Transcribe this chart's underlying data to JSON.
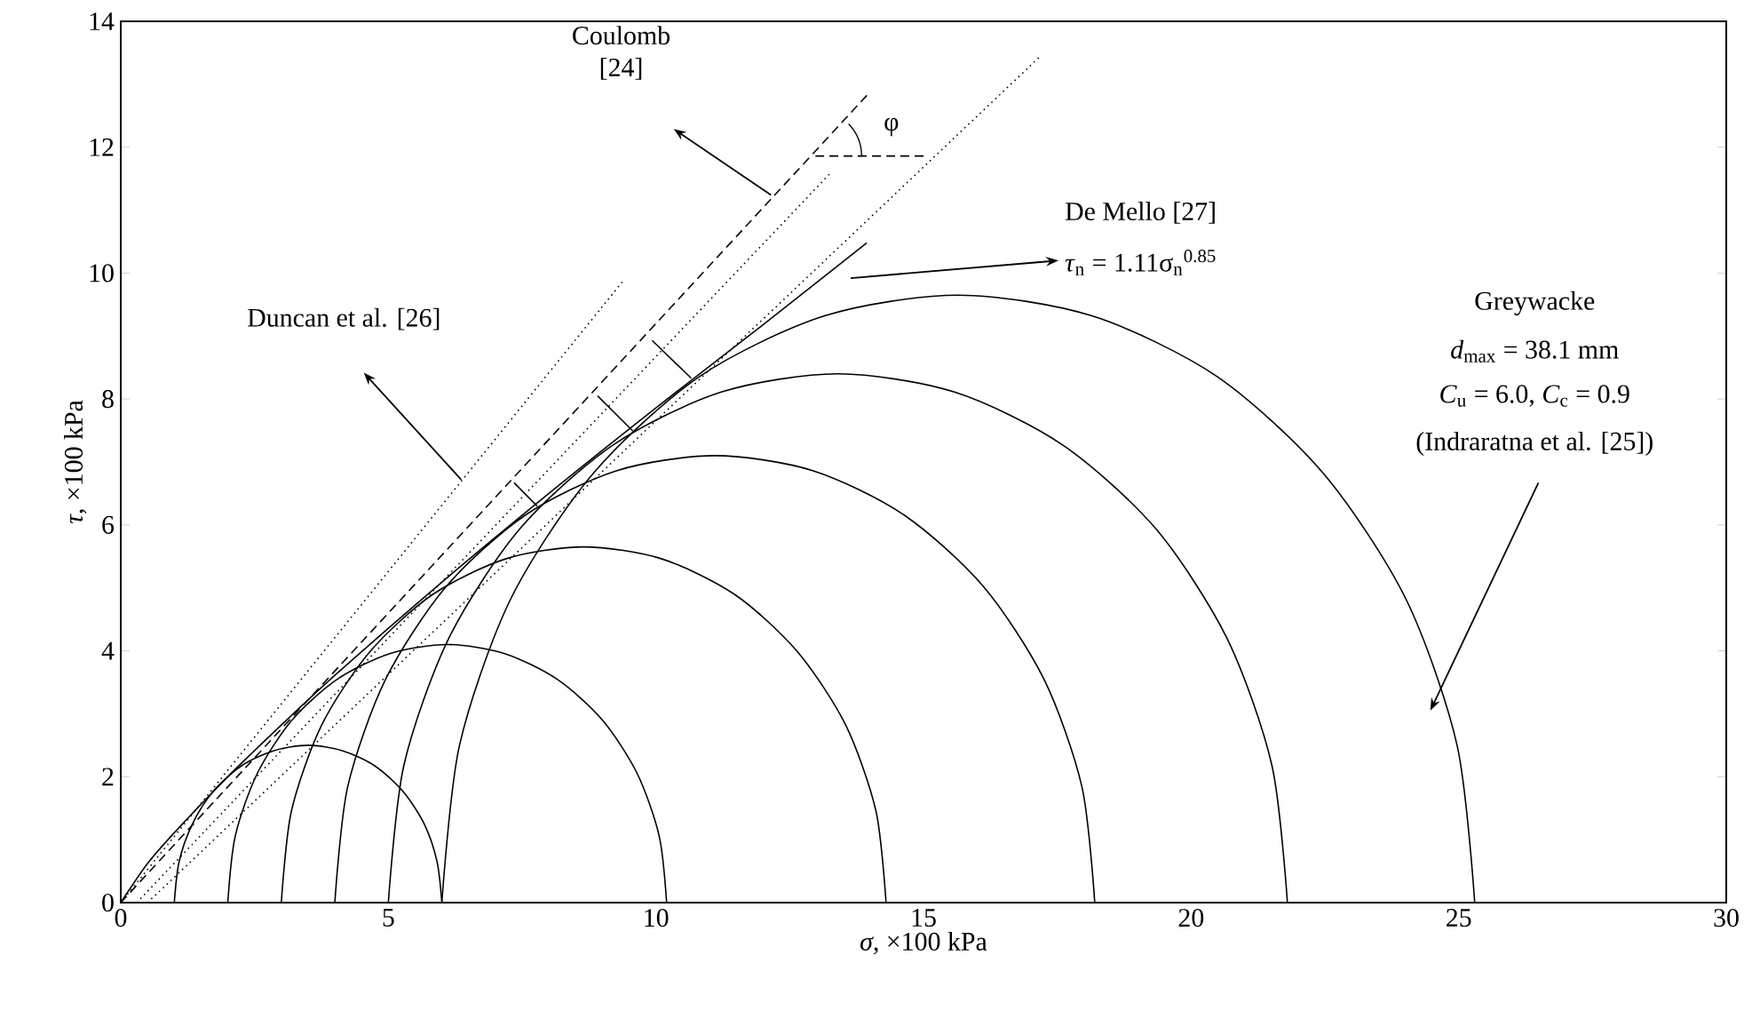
{
  "chart_data": {
    "type": "line",
    "xlabel": "*σ*, ×100 kPa",
    "ylabel": "*τ*, ×100 kPa",
    "xlim": [
      0,
      30
    ],
    "ylim": [
      0,
      14
    ],
    "xticks": [
      0,
      5,
      10,
      15,
      20,
      25,
      30
    ],
    "yticks": [
      0,
      2,
      4,
      6,
      8,
      10,
      12,
      14
    ],
    "marker": "none",
    "line_style": "solid",
    "series": [
      {
        "color": "#000000",
        "x": [
          1.0,
          1.09,
          1.34,
          1.73,
          2.25,
          2.85,
          3.5,
          4.15,
          4.75,
          5.27,
          5.67,
          5.91,
          6.0
        ],
        "values": [
          0,
          0.65,
          1.25,
          1.77,
          2.17,
          2.41,
          2.5,
          2.41,
          2.17,
          1.77,
          1.25,
          0.65,
          0
        ]
      },
      {
        "color": "#000000",
        "x": [
          2.0,
          2.14,
          2.55,
          3.2,
          4.05,
          5.04,
          6.1,
          7.16,
          8.15,
          9.0,
          9.65,
          10.06,
          10.2
        ],
        "values": [
          0,
          1.06,
          2.05,
          2.9,
          3.55,
          3.96,
          4.1,
          3.96,
          3.55,
          2.9,
          2.05,
          1.06,
          0
        ]
      },
      {
        "color": "#000000",
        "x": [
          3.0,
          3.19,
          3.76,
          4.66,
          5.82,
          7.19,
          8.65,
          10.11,
          11.48,
          12.64,
          13.54,
          14.11,
          14.3
        ],
        "values": [
          0,
          1.46,
          2.83,
          3.99,
          4.89,
          5.46,
          5.65,
          5.46,
          4.89,
          3.99,
          2.83,
          1.46,
          0
        ]
      },
      {
        "color": "#000000",
        "x": [
          4.0,
          4.24,
          4.95,
          6.08,
          7.55,
          9.26,
          11.1,
          12.94,
          14.65,
          16.12,
          17.25,
          17.96,
          18.2
        ],
        "values": [
          0,
          1.84,
          3.55,
          5.02,
          6.15,
          6.86,
          7.1,
          6.86,
          6.15,
          5.02,
          3.55,
          1.84,
          0
        ]
      },
      {
        "color": "#000000",
        "x": [
          5.0,
          5.29,
          6.13,
          7.46,
          9.2,
          11.22,
          13.4,
          15.58,
          17.6,
          19.34,
          20.67,
          21.51,
          21.8
        ],
        "values": [
          0,
          2.18,
          4.2,
          5.94,
          7.27,
          8.11,
          8.4,
          8.11,
          7.27,
          5.94,
          4.2,
          2.18,
          0
        ]
      },
      {
        "color": "#000000",
        "x": [
          6.0,
          6.33,
          7.29,
          8.83,
          10.82,
          13.15,
          15.65,
          18.15,
          20.48,
          22.47,
          24.01,
          24.97,
          25.3
        ],
        "values": [
          0,
          2.5,
          4.83,
          6.82,
          8.36,
          9.32,
          9.65,
          9.32,
          8.36,
          6.82,
          4.83,
          2.5,
          0
        ]
      },
      {
        "color": "#000000",
        "x": [
          0,
          0.5,
          1,
          2,
          3,
          4,
          6,
          8,
          10,
          12,
          13.94
        ],
        "values": [
          0,
          0.62,
          1.11,
          2.0,
          2.82,
          3.61,
          5.09,
          6.5,
          7.86,
          9.18,
          10.48
        ]
      },
      {
        "color": "#000000",
        "line_style": "dashed",
        "x": [
          0,
          13.97
        ],
        "values": [
          0,
          12.85
        ]
      },
      {
        "color": "#000000",
        "line_style": "dotted",
        "x": [
          0,
          9.4
        ],
        "values": [
          0,
          9.89
        ]
      },
      {
        "color": "#000000",
        "line_style": "dotted",
        "x": [
          0.3,
          13.25
        ],
        "values": [
          0,
          11.58
        ]
      },
      {
        "color": "#000000",
        "line_style": "dotted",
        "x": [
          0.5,
          17.19
        ],
        "values": [
          0,
          13.45
        ]
      },
      {
        "color": "#000000",
        "line_style": "dashed",
        "x": [
          12.98,
          15.07
        ],
        "values": [
          11.86,
          11.86
        ]
      },
      {
        "color": "#000000",
        "x": [
          7.35,
          7.78
        ],
        "values": [
          6.67,
          6.3
        ]
      },
      {
        "color": "#000000",
        "x": [
          8.91,
          9.57
        ],
        "values": [
          8.05,
          7.49
        ]
      },
      {
        "color": "#000000",
        "x": [
          9.93,
          10.66
        ],
        "values": [
          8.93,
          8.33
        ]
      }
    ],
    "annotations": [
      "Coulomb [24]",
      "Duncan et al. [26]",
      "De Mello [27]",
      "*τ*$_{n}$ = 1.11σ$_{n}$$^{0.85}$",
      "Greywacke",
      "*d*$_{max}$ = 38.1 mm",
      "*C*$_{u}$ = 6.0, *C*$_{c}$ = 0.9",
      "(Indraratna et al. [25])",
      "φ"
    ]
  }
}
